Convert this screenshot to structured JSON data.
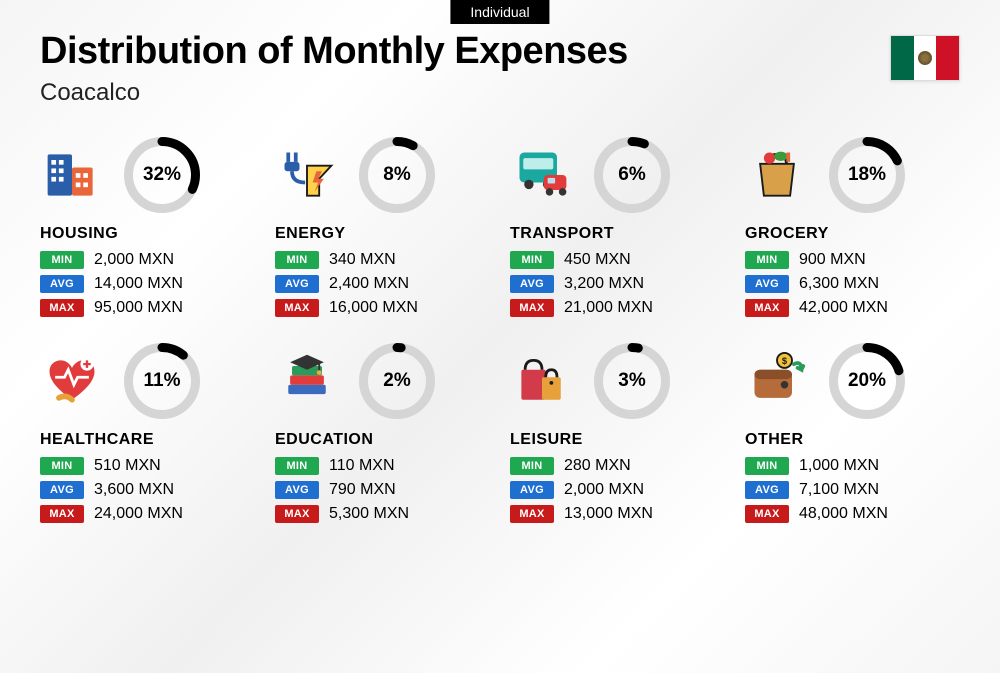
{
  "top_tag": "Individual",
  "title": "Distribution of Monthly Expenses",
  "subtitle": "Coacalco",
  "flag": {
    "left": "#006847",
    "mid": "#ffffff",
    "right": "#ce1126"
  },
  "currency": "MXN",
  "labels": {
    "min": "MIN",
    "avg": "AVG",
    "max": "MAX"
  },
  "badge_colors": {
    "min": "#1fa850",
    "avg": "#1f6fd1",
    "max": "#c71a1a"
  },
  "donut": {
    "size": 76,
    "stroke": 9,
    "track_color": "#d5d5d5",
    "arc_color": "#000000"
  },
  "categories": [
    {
      "key": "housing",
      "name": "HOUSING",
      "pct": 32,
      "min": "2,000",
      "avg": "14,000",
      "max": "95,000",
      "icon": "housing-icon"
    },
    {
      "key": "energy",
      "name": "ENERGY",
      "pct": 8,
      "min": "340",
      "avg": "2,400",
      "max": "16,000",
      "icon": "energy-icon"
    },
    {
      "key": "transport",
      "name": "TRANSPORT",
      "pct": 6,
      "min": "450",
      "avg": "3,200",
      "max": "21,000",
      "icon": "transport-icon"
    },
    {
      "key": "grocery",
      "name": "GROCERY",
      "pct": 18,
      "min": "900",
      "avg": "6,300",
      "max": "42,000",
      "icon": "grocery-icon"
    },
    {
      "key": "healthcare",
      "name": "HEALTHCARE",
      "pct": 11,
      "min": "510",
      "avg": "3,600",
      "max": "24,000",
      "icon": "healthcare-icon"
    },
    {
      "key": "education",
      "name": "EDUCATION",
      "pct": 2,
      "min": "110",
      "avg": "790",
      "max": "5,300",
      "icon": "education-icon"
    },
    {
      "key": "leisure",
      "name": "LEISURE",
      "pct": 3,
      "min": "280",
      "avg": "2,000",
      "max": "13,000",
      "icon": "leisure-icon"
    },
    {
      "key": "other",
      "name": "OTHER",
      "pct": 20,
      "min": "1,000",
      "avg": "7,100",
      "max": "48,000",
      "icon": "other-icon"
    }
  ]
}
